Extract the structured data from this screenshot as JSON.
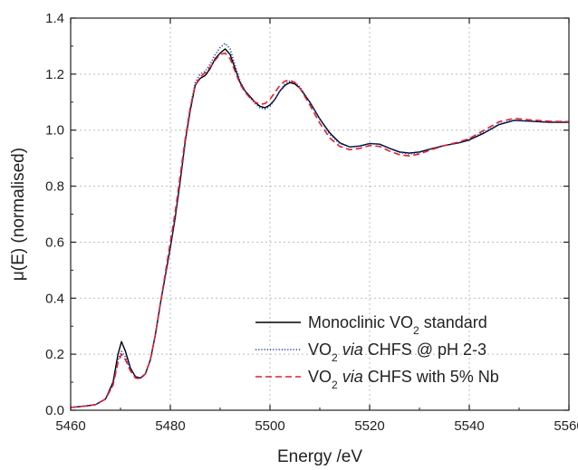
{
  "chart_data": {
    "type": "line",
    "xlabel": "Energy /eV",
    "ylabel_parts": [
      "μ(E) (normalised)"
    ],
    "xlim": [
      5460,
      5560
    ],
    "ylim": [
      0.0,
      1.4
    ],
    "x_ticks": [
      "5460",
      "5480",
      "5500",
      "5520",
      "5540",
      "5560"
    ],
    "y_ticks": [
      "0.0",
      "0.2",
      "0.4",
      "0.6",
      "0.8",
      "1.0",
      "1.2",
      "1.4"
    ],
    "grid": true,
    "legend_position": "bottom-right",
    "legend": [
      {
        "prefix": "Monoclinic VO",
        "sub": "2",
        "italic": "",
        "suffix": " standard"
      },
      {
        "prefix": "VO",
        "sub": "2",
        "italic": " via",
        "suffix": " CHFS @ pH 2-3"
      },
      {
        "prefix": "VO",
        "sub": "2",
        "italic": " via",
        "suffix": " CHFS with 5% Nb"
      }
    ],
    "series": [
      {
        "name": "Monoclinic VO2 standard",
        "color": "#000000",
        "style": "solid",
        "points": [
          [
            5460,
            0.01
          ],
          [
            5463,
            0.015
          ],
          [
            5465,
            0.02
          ],
          [
            5467,
            0.04
          ],
          [
            5468.5,
            0.1
          ],
          [
            5469.5,
            0.2
          ],
          [
            5470.2,
            0.245
          ],
          [
            5471,
            0.21
          ],
          [
            5472,
            0.15
          ],
          [
            5473,
            0.12
          ],
          [
            5474,
            0.115
          ],
          [
            5475,
            0.13
          ],
          [
            5476,
            0.18
          ],
          [
            5477,
            0.27
          ],
          [
            5478,
            0.38
          ],
          [
            5479,
            0.48
          ],
          [
            5480,
            0.58
          ],
          [
            5481,
            0.69
          ],
          [
            5482,
            0.82
          ],
          [
            5483,
            0.96
          ],
          [
            5484,
            1.07
          ],
          [
            5485,
            1.16
          ],
          [
            5486,
            1.185
          ],
          [
            5487,
            1.195
          ],
          [
            5488,
            1.22
          ],
          [
            5489,
            1.255
          ],
          [
            5490,
            1.275
          ],
          [
            5491,
            1.29
          ],
          [
            5492,
            1.27
          ],
          [
            5493,
            1.22
          ],
          [
            5494,
            1.17
          ],
          [
            5495,
            1.14
          ],
          [
            5496,
            1.12
          ],
          [
            5497,
            1.1
          ],
          [
            5498,
            1.085
          ],
          [
            5499,
            1.08
          ],
          [
            5500,
            1.09
          ],
          [
            5501,
            1.11
          ],
          [
            5502,
            1.14
          ],
          [
            5503,
            1.16
          ],
          [
            5504,
            1.17
          ],
          [
            5505,
            1.165
          ],
          [
            5506,
            1.15
          ],
          [
            5508,
            1.1
          ],
          [
            5510,
            1.04
          ],
          [
            5512,
            0.99
          ],
          [
            5514,
            0.955
          ],
          [
            5516,
            0.94
          ],
          [
            5518,
            0.943
          ],
          [
            5520,
            0.952
          ],
          [
            5522,
            0.95
          ],
          [
            5524,
            0.935
          ],
          [
            5526,
            0.922
          ],
          [
            5528,
            0.918
          ],
          [
            5530,
            0.922
          ],
          [
            5532,
            0.932
          ],
          [
            5535,
            0.945
          ],
          [
            5538,
            0.955
          ],
          [
            5540,
            0.965
          ],
          [
            5543,
            0.99
          ],
          [
            5546,
            1.02
          ],
          [
            5549,
            1.035
          ],
          [
            5552,
            1.032
          ],
          [
            5556,
            1.028
          ],
          [
            5560,
            1.028
          ]
        ]
      },
      {
        "name": "VO2 via CHFS @ pH 2-3",
        "color": "#1a3fd8",
        "style": "dotted",
        "points": [
          [
            5460,
            0.01
          ],
          [
            5463,
            0.015
          ],
          [
            5465,
            0.02
          ],
          [
            5467,
            0.04
          ],
          [
            5468.5,
            0.09
          ],
          [
            5469.5,
            0.18
          ],
          [
            5470.2,
            0.21
          ],
          [
            5471,
            0.19
          ],
          [
            5472,
            0.145
          ],
          [
            5473,
            0.12
          ],
          [
            5474,
            0.115
          ],
          [
            5475,
            0.13
          ],
          [
            5476,
            0.18
          ],
          [
            5477,
            0.27
          ],
          [
            5478,
            0.38
          ],
          [
            5479,
            0.48
          ],
          [
            5480,
            0.58
          ],
          [
            5481,
            0.69
          ],
          [
            5482,
            0.82
          ],
          [
            5483,
            0.96
          ],
          [
            5484,
            1.08
          ],
          [
            5485,
            1.17
          ],
          [
            5486,
            1.2
          ],
          [
            5487,
            1.21
          ],
          [
            5488,
            1.235
          ],
          [
            5489,
            1.27
          ],
          [
            5490,
            1.295
          ],
          [
            5491,
            1.31
          ],
          [
            5492,
            1.29
          ],
          [
            5493,
            1.23
          ],
          [
            5494,
            1.175
          ],
          [
            5495,
            1.14
          ],
          [
            5496,
            1.115
          ],
          [
            5497,
            1.095
          ],
          [
            5498,
            1.08
          ],
          [
            5499,
            1.075
          ],
          [
            5500,
            1.085
          ],
          [
            5501,
            1.11
          ],
          [
            5502,
            1.14
          ],
          [
            5503,
            1.165
          ],
          [
            5504,
            1.175
          ],
          [
            5505,
            1.17
          ],
          [
            5506,
            1.155
          ],
          [
            5508,
            1.1
          ],
          [
            5510,
            1.04
          ],
          [
            5512,
            0.985
          ],
          [
            5514,
            0.952
          ],
          [
            5516,
            0.94
          ],
          [
            5518,
            0.944
          ],
          [
            5520,
            0.953
          ],
          [
            5522,
            0.95
          ],
          [
            5524,
            0.935
          ],
          [
            5526,
            0.92
          ],
          [
            5528,
            0.915
          ],
          [
            5530,
            0.92
          ],
          [
            5532,
            0.93
          ],
          [
            5535,
            0.945
          ],
          [
            5538,
            0.956
          ],
          [
            5540,
            0.968
          ],
          [
            5543,
            0.993
          ],
          [
            5546,
            1.022
          ],
          [
            5549,
            1.036
          ],
          [
            5552,
            1.033
          ],
          [
            5556,
            1.03
          ],
          [
            5560,
            1.03
          ]
        ]
      },
      {
        "name": "VO2 via CHFS with 5% Nb",
        "color": "#e0202a",
        "style": "dashed",
        "points": [
          [
            5460,
            0.01
          ],
          [
            5463,
            0.015
          ],
          [
            5465,
            0.02
          ],
          [
            5467,
            0.04
          ],
          [
            5468.5,
            0.09
          ],
          [
            5469.5,
            0.17
          ],
          [
            5470.2,
            0.2
          ],
          [
            5471,
            0.18
          ],
          [
            5472,
            0.14
          ],
          [
            5473,
            0.115
          ],
          [
            5474,
            0.112
          ],
          [
            5475,
            0.13
          ],
          [
            5476,
            0.18
          ],
          [
            5477,
            0.27
          ],
          [
            5478,
            0.38
          ],
          [
            5479,
            0.49
          ],
          [
            5480,
            0.6
          ],
          [
            5481,
            0.71
          ],
          [
            5482,
            0.84
          ],
          [
            5483,
            0.97
          ],
          [
            5484,
            1.08
          ],
          [
            5485,
            1.16
          ],
          [
            5486,
            1.19
          ],
          [
            5487,
            1.205
          ],
          [
            5488,
            1.225
          ],
          [
            5489,
            1.25
          ],
          [
            5490,
            1.27
          ],
          [
            5491,
            1.275
          ],
          [
            5492,
            1.255
          ],
          [
            5493,
            1.21
          ],
          [
            5494,
            1.165
          ],
          [
            5495,
            1.135
          ],
          [
            5496,
            1.115
          ],
          [
            5497,
            1.1
          ],
          [
            5498,
            1.092
          ],
          [
            5499,
            1.095
          ],
          [
            5500,
            1.11
          ],
          [
            5501,
            1.135
          ],
          [
            5502,
            1.16
          ],
          [
            5503,
            1.175
          ],
          [
            5504,
            1.178
          ],
          [
            5505,
            1.17
          ],
          [
            5506,
            1.15
          ],
          [
            5508,
            1.09
          ],
          [
            5510,
            1.025
          ],
          [
            5512,
            0.972
          ],
          [
            5514,
            0.942
          ],
          [
            5516,
            0.93
          ],
          [
            5518,
            0.935
          ],
          [
            5520,
            0.945
          ],
          [
            5522,
            0.942
          ],
          [
            5524,
            0.925
          ],
          [
            5526,
            0.912
          ],
          [
            5528,
            0.908
          ],
          [
            5530,
            0.915
          ],
          [
            5532,
            0.928
          ],
          [
            5535,
            0.945
          ],
          [
            5538,
            0.958
          ],
          [
            5540,
            0.97
          ],
          [
            5543,
            1.0
          ],
          [
            5546,
            1.03
          ],
          [
            5549,
            1.042
          ],
          [
            5552,
            1.037
          ],
          [
            5556,
            1.032
          ],
          [
            5560,
            1.03
          ]
        ]
      }
    ]
  }
}
